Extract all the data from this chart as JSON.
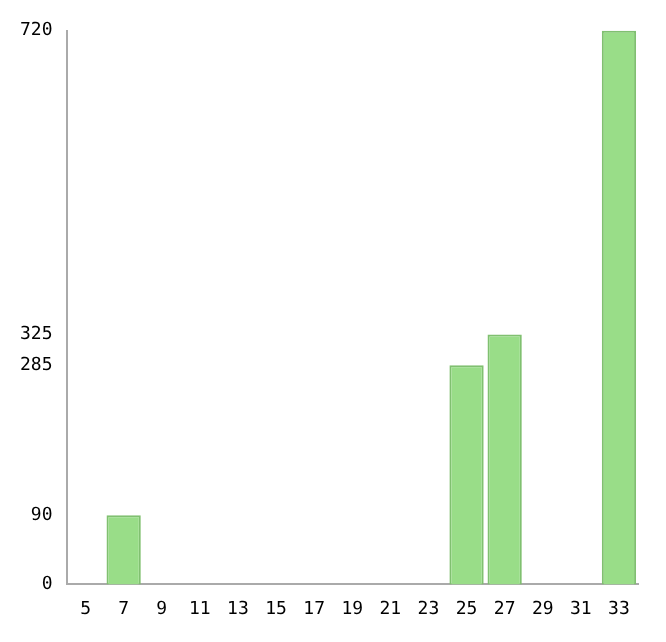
{
  "chart_data": {
    "type": "bar",
    "categories": [
      "5",
      "7",
      "9",
      "11",
      "13",
      "15",
      "17",
      "19",
      "21",
      "23",
      "25",
      "27",
      "29",
      "31",
      "33"
    ],
    "values": [
      0,
      90,
      0,
      0,
      0,
      0,
      0,
      0,
      0,
      0,
      285,
      325,
      0,
      0,
      720
    ],
    "color": "#99dd88",
    "ylim": [
      0,
      720
    ],
    "yticks": [
      0,
      90,
      285,
      325,
      720
    ],
    "grid": false,
    "legend": false
  }
}
